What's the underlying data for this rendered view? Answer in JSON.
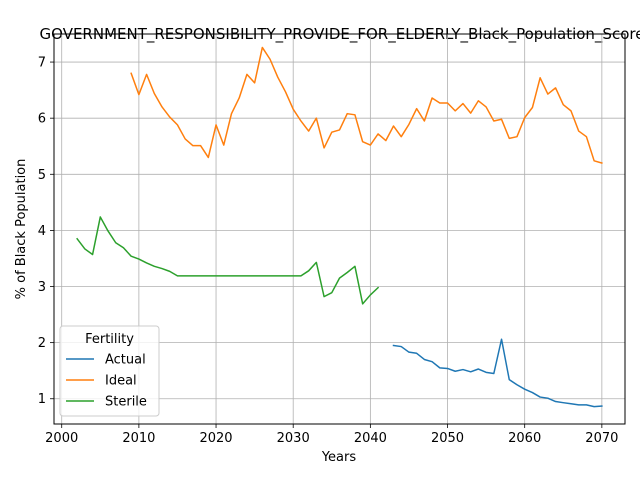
{
  "chart_data": {
    "type": "line",
    "title": "GOVERNMENT_RESPONSIBILITY_PROVIDE_FOR_ELDERLY_Black_Population_Score",
    "xlabel": "Years",
    "ylabel": "% of Black Population",
    "xlim": [
      1999,
      2073
    ],
    "ylim": [
      0.55,
      7.5
    ],
    "xticks": [
      2000,
      2010,
      2020,
      2030,
      2040,
      2050,
      2060,
      2070
    ],
    "yticks": [
      1,
      2,
      3,
      4,
      5,
      6,
      7
    ],
    "grid": true,
    "legend": {
      "title": "Fertility",
      "position": "lower-left"
    },
    "series": [
      {
        "name": "Actual",
        "color": "#1f77b4",
        "x": [
          2043,
          2044,
          2045,
          2046,
          2047,
          2048,
          2049,
          2050,
          2051,
          2052,
          2053,
          2054,
          2055,
          2056,
          2057,
          2058,
          2059,
          2060,
          2061,
          2062,
          2063,
          2064,
          2065,
          2066,
          2067,
          2068,
          2069,
          2070
        ],
        "y": [
          1.95,
          1.93,
          1.83,
          1.81,
          1.7,
          1.66,
          1.55,
          1.54,
          1.49,
          1.52,
          1.48,
          1.53,
          1.47,
          1.45,
          2.06,
          1.34,
          1.25,
          1.17,
          1.11,
          1.03,
          1.01,
          0.95,
          0.93,
          0.91,
          0.89,
          0.89,
          0.86,
          0.87
        ]
      },
      {
        "name": "Ideal",
        "color": "#ff7f0e",
        "x": [
          2009,
          2010,
          2011,
          2012,
          2013,
          2014,
          2015,
          2016,
          2017,
          2018,
          2019,
          2020,
          2021,
          2022,
          2023,
          2024,
          2025,
          2026,
          2027,
          2028,
          2029,
          2030,
          2031,
          2032,
          2033,
          2034,
          2035,
          2036,
          2037,
          2038,
          2039,
          2040,
          2041,
          2042,
          2043,
          2044,
          2045,
          2046,
          2047,
          2048,
          2049,
          2050,
          2051,
          2052,
          2053,
          2054,
          2055,
          2056,
          2057,
          2058,
          2059,
          2060,
          2061,
          2062,
          2063,
          2064,
          2065,
          2066,
          2067,
          2068,
          2069,
          2070
        ],
        "y": [
          6.8,
          6.42,
          6.78,
          6.44,
          6.2,
          6.02,
          5.88,
          5.63,
          5.51,
          5.51,
          5.3,
          5.88,
          5.52,
          6.08,
          6.36,
          6.78,
          6.63,
          7.26,
          7.05,
          6.73,
          6.47,
          6.16,
          5.95,
          5.77,
          6.0,
          5.47,
          5.75,
          5.79,
          6.08,
          6.06,
          5.58,
          5.52,
          5.72,
          5.6,
          5.86,
          5.67,
          5.89,
          6.17,
          5.95,
          6.36,
          6.27,
          6.27,
          6.13,
          6.26,
          6.09,
          6.31,
          6.2,
          5.95,
          5.98,
          5.64,
          5.67,
          6.01,
          6.19,
          6.72,
          6.43,
          6.54,
          6.24,
          6.13,
          5.77,
          5.67,
          5.24,
          5.2
        ]
      },
      {
        "name": "Sterile",
        "color": "#2ca02c",
        "x": [
          2002,
          2003,
          2004,
          2005,
          2006,
          2007,
          2008,
          2009,
          2010,
          2011,
          2012,
          2013,
          2014,
          2015,
          2016,
          2017,
          2018,
          2019,
          2020,
          2021,
          2022,
          2023,
          2024,
          2025,
          2026,
          2027,
          2028,
          2029,
          2030,
          2031,
          2032,
          2033,
          2034,
          2035,
          2036,
          2037,
          2038,
          2039,
          2040,
          2041
        ],
        "y": [
          3.85,
          3.67,
          3.57,
          4.24,
          3.99,
          3.78,
          3.69,
          3.54,
          3.49,
          3.42,
          3.36,
          3.32,
          3.27,
          3.19,
          3.19,
          3.19,
          3.19,
          3.19,
          3.19,
          3.19,
          3.19,
          3.19,
          3.19,
          3.19,
          3.19,
          3.19,
          3.19,
          3.19,
          3.19,
          3.19,
          3.28,
          3.43,
          2.82,
          2.89,
          3.15,
          3.25,
          3.36,
          2.69,
          2.85,
          2.98
        ]
      }
    ]
  }
}
